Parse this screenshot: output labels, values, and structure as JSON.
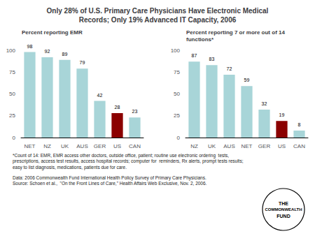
{
  "title": "Only 28% of U.S. Primary Care Physicians Have Electronic Medical\nRecords; Only 19% Advanced IT Capacity, 2006",
  "annotations": [
    "*Count of 14: EMR, EMR access other doctors, outside office, patient; routine use electronic ordering  tests,\nprescriptions, access test results, access hospital records; computer for  reminders, Rx alerts, prompt tests results;\neasy to list diagnosis, medications, patients due for care.",
    "Data: 2006 Commonwealth Fund International Health Policy Survey of Primary Care Physicians.\nSource: Schoen et al.,  \"On the Front Lines of Care,\" Health Affairs Web Exclusive, Nov. 2, 2006.",
    "THE",
    "COMMONWEALTH",
    "FUND"
  ],
  "chart_data": [
    {
      "type": "bar",
      "title": "Percent reporting EMR",
      "categories": [
        "NET",
        "NZ",
        "UK",
        "AUS",
        "GER",
        "US",
        "CAN"
      ],
      "values": [
        98,
        92,
        89,
        79,
        42,
        28,
        23
      ],
      "colors": [
        "#a8d5d8",
        "#a8d5d8",
        "#a8d5d8",
        "#a8d5d8",
        "#a8d5d8",
        "#8b0000",
        "#a8d5d8"
      ],
      "ylim": [
        0,
        100
      ],
      "yticks": [
        0,
        25,
        50,
        75,
        100
      ],
      "grid": false,
      "data_labels": true
    },
    {
      "type": "bar",
      "title": "Percent reporting 7 or more out of 14\nfunctions*",
      "categories": [
        "NZ",
        "UK",
        "AUS",
        "NET",
        "GER",
        "US",
        "CAN"
      ],
      "values": [
        87,
        83,
        72,
        59,
        32,
        19,
        8
      ],
      "colors": [
        "#a8d5d8",
        "#a8d5d8",
        "#a8d5d8",
        "#a8d5d8",
        "#a8d5d8",
        "#8b0000",
        "#a8d5d8"
      ],
      "ylim": [
        0,
        100
      ],
      "yticks": [
        0,
        25,
        50,
        75,
        100
      ],
      "grid": false,
      "data_labels": true
    }
  ]
}
